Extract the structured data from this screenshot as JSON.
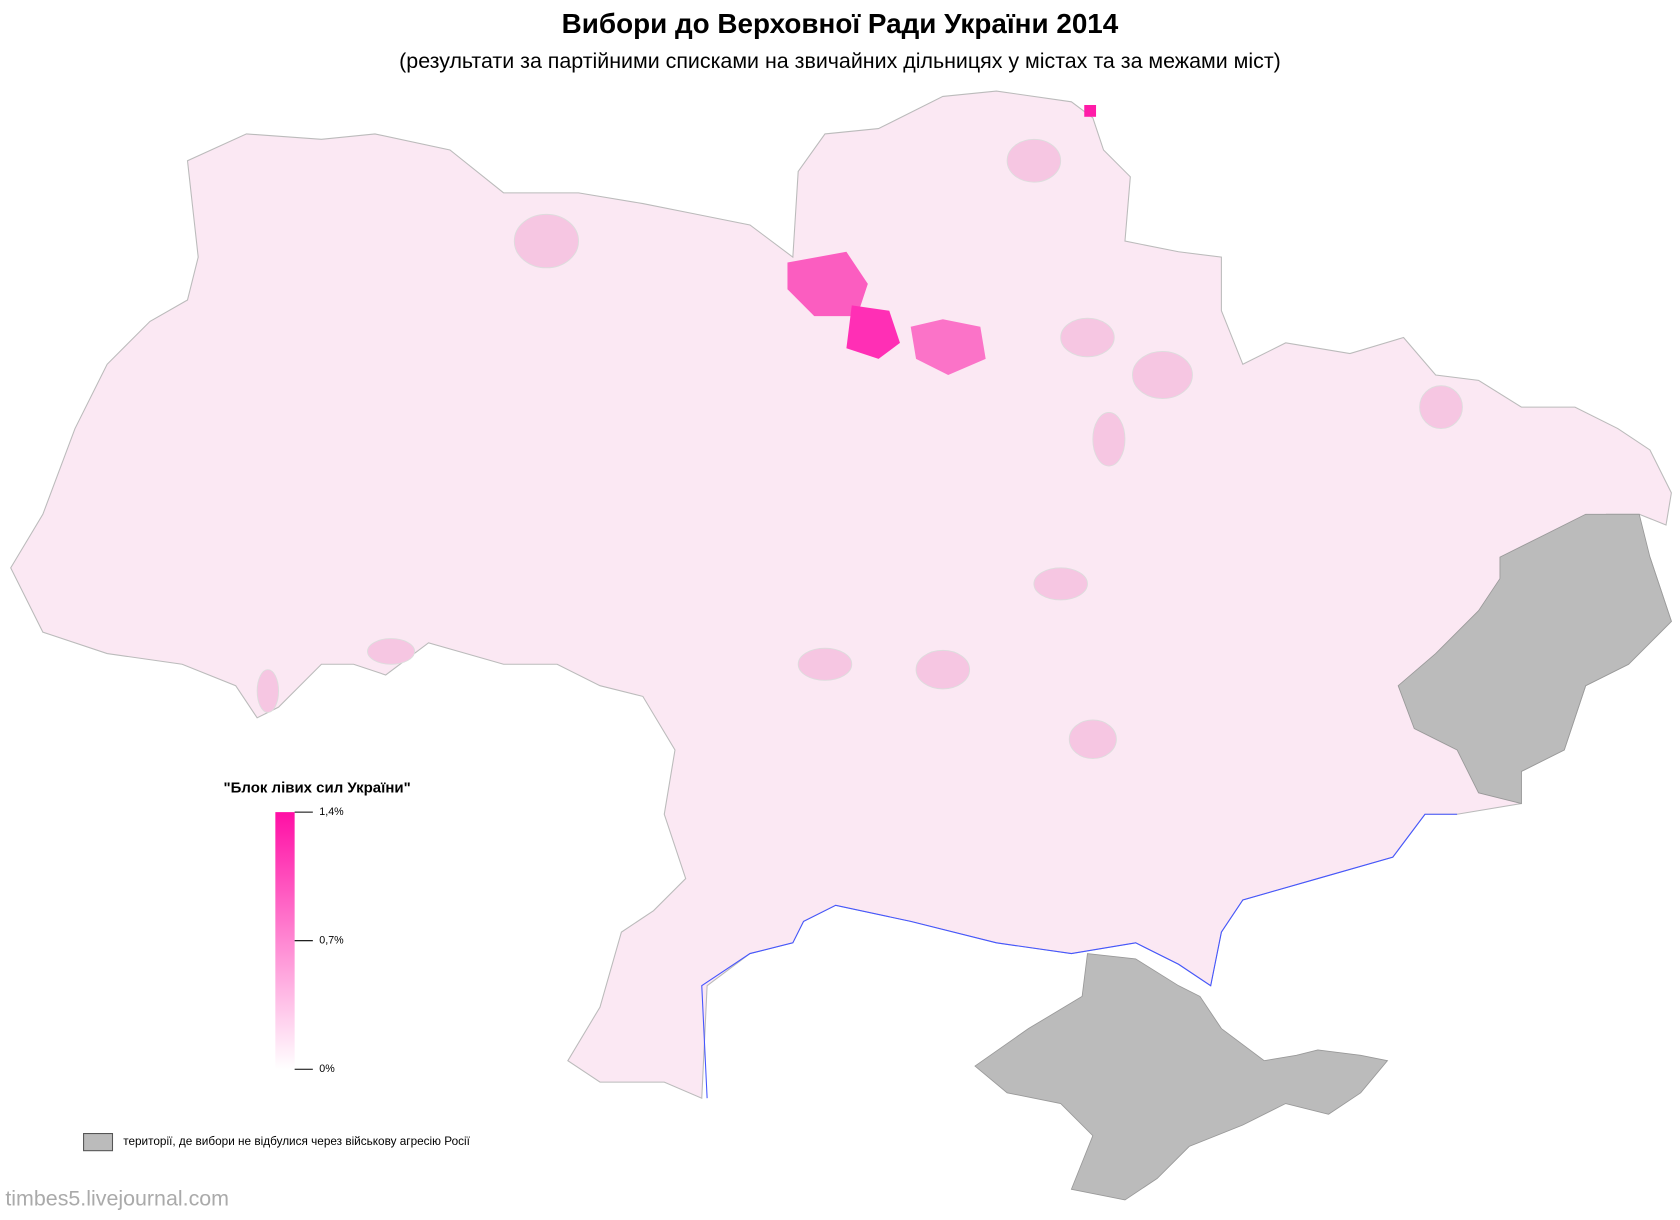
{
  "header": {
    "title": "Вибори до Верховної Ради України 2014",
    "subtitle": "(результати за партійними списками на звичайних дільницях у містах та за межами міст)"
  },
  "legend": {
    "title": "\"Блок лівих сил України\"",
    "colors": [
      "#ffffff",
      "#ff0fa5"
    ],
    "ticks": [
      {
        "value": 1.4,
        "label": "1,4%"
      },
      {
        "value": 0.7,
        "label": "0,7%"
      },
      {
        "value": 0,
        "label": "0%"
      }
    ],
    "no_vote_label": "території, де вибори не відбулися через військову агресію Росії"
  },
  "footer": {
    "watermark": "timbes5.livejournal.com"
  }
}
